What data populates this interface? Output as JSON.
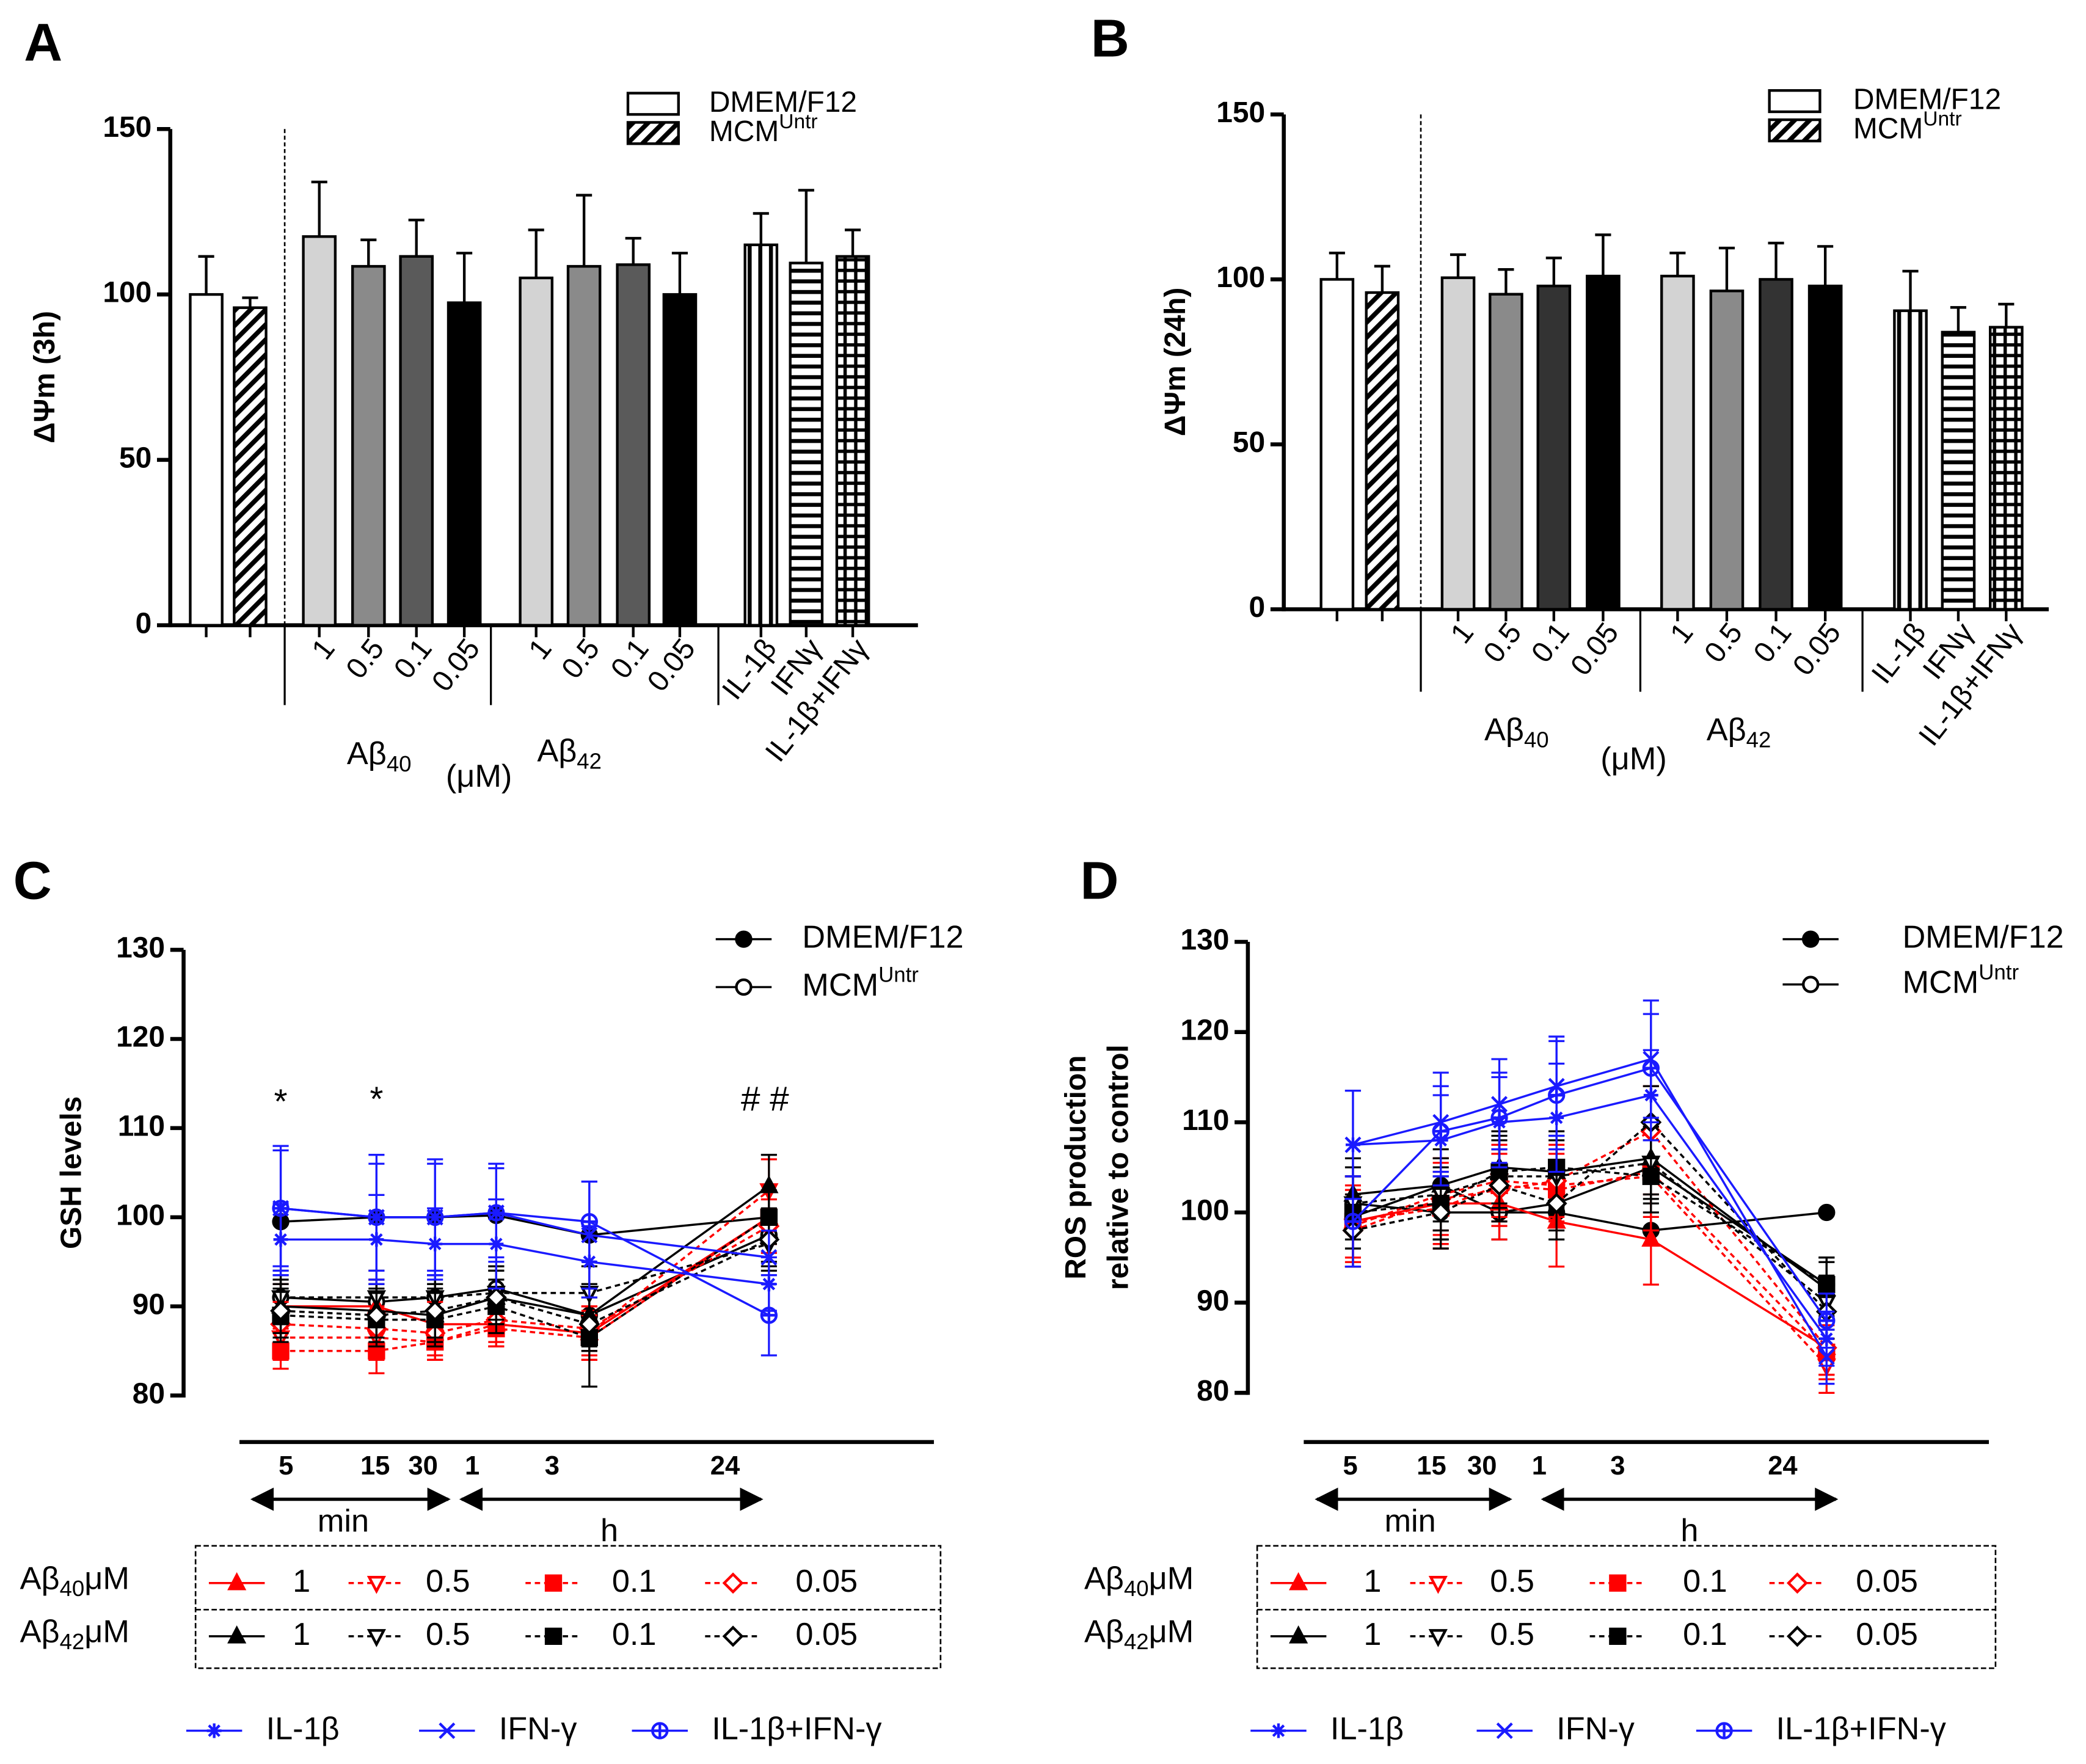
{
  "chart_data": [
    {
      "type": "bar",
      "panel": "A",
      "ylabel": "ΔΨm (3h)",
      "ylim": [
        0,
        150
      ],
      "yticks": [
        0,
        50,
        100,
        150
      ],
      "categories": [
        null,
        null,
        "1",
        "0.5",
        "0.1",
        "0.05",
        "1",
        "0.5",
        "0.1",
        "0.05",
        "IL-1β",
        "IFNγ",
        "IL-1β+IFNγ"
      ],
      "values": [
        100,
        96,
        117.5,
        108.5,
        111.5,
        97.5,
        105,
        108.5,
        109,
        100,
        115,
        109.5,
        111.5
      ],
      "errors": [
        11.5,
        3,
        16.5,
        8,
        11,
        15,
        14.5,
        21.5,
        8,
        12.5,
        9.5,
        22,
        8
      ],
      "colors": [
        "#ffffff",
        "#ffffff",
        "#d3d3d3",
        "#8a8a8a",
        "#5a5a5a",
        "#000000",
        "#d3d3d3",
        "#8a8a8a",
        "#5a5a5a",
        "#000000",
        "#ffffff",
        "#ffffff",
        "#ffffff"
      ],
      "patterns": [
        "none",
        "diagonal",
        "none",
        "none",
        "none",
        "none",
        "none",
        "none",
        "none",
        "none",
        "vertical",
        "horizontal",
        "grid"
      ],
      "groups": [
        {
          "text": "Aβ",
          "sub": "40"
        },
        {
          "text": "Aβ",
          "sub": "42"
        }
      ],
      "unit": "(μM)",
      "legend": [
        {
          "text": "DMEM/F12"
        },
        {
          "text": "MCM",
          "sup": "Untr"
        }
      ]
    },
    {
      "type": "bar",
      "panel": "B",
      "ylabel": "ΔΨm (24h)",
      "ylim": [
        0,
        150
      ],
      "yticks": [
        0,
        50,
        100,
        150
      ],
      "categories": [
        null,
        null,
        "1",
        "0.5",
        "0.1",
        "0.05",
        "1",
        "0.5",
        "0.1",
        "0.05",
        "IL-1β",
        "IFNγ",
        "IL-1β+IFNγ"
      ],
      "values": [
        100,
        96,
        100.5,
        95.5,
        98,
        101,
        101,
        96.5,
        100,
        98,
        90.5,
        84,
        85.5
      ],
      "errors": [
        8,
        8,
        7,
        7.5,
        8.5,
        12.5,
        7,
        13,
        11,
        12,
        12,
        7.5,
        7
      ],
      "colors": [
        "#ffffff",
        "#ffffff",
        "#d3d3d3",
        "#8a8a8a",
        "#333333",
        "#000000",
        "#d3d3d3",
        "#8a8a8a",
        "#333333",
        "#000000",
        "#ffffff",
        "#ffffff",
        "#ffffff"
      ],
      "patterns": [
        "none",
        "diagonal",
        "none",
        "none",
        "none",
        "none",
        "none",
        "none",
        "none",
        "none",
        "vertical",
        "horizontal",
        "grid"
      ],
      "groups": [
        {
          "text": "Aβ",
          "sub": "40"
        },
        {
          "text": "Aβ",
          "sub": "42"
        }
      ],
      "unit": "(μM)",
      "legend": [
        {
          "text": "DMEM/F12"
        },
        {
          "text": "MCM",
          "sup": "Untr"
        }
      ]
    },
    {
      "type": "line",
      "panel": "C",
      "ylabel": [
        "GSH levels"
      ],
      "ylim": [
        80,
        130
      ],
      "yticks": [
        80,
        90,
        100,
        110,
        120,
        130
      ],
      "categories": [
        "5",
        "15",
        "30",
        "1",
        "3",
        "24"
      ],
      "units": [
        "min",
        "h"
      ],
      "annotations": [
        "*",
        "*",
        "# #"
      ],
      "row_labels": [
        {
          "text": "Aβ",
          "sub": "40",
          "tail": "μM"
        },
        {
          "text": "Aβ",
          "sub": "42",
          "tail": "μM"
        }
      ],
      "series": [
        {
          "name": "DMEM/F12",
          "color": "#000000",
          "marker": "dot",
          "dash": false,
          "values": [
            99.5,
            100,
            100,
            100.2,
            98,
            100
          ]
        },
        {
          "name": "MCM",
          "name_sup": "Untr",
          "color": "#000000",
          "marker": "circle",
          "dash": false,
          "values": [
            91,
            90.5,
            91,
            92,
            89,
            98
          ],
          "errors": [
            2.5,
            2.5,
            2.5,
            2.5,
            3,
            3
          ]
        },
        {
          "name": "1",
          "color": "#ff0000",
          "marker": "triangle",
          "dash": false,
          "values": [
            90,
            90,
            88,
            88,
            87,
            100
          ],
          "errors": [
            2.5,
            3,
            2.5,
            2.5,
            3,
            3
          ]
        },
        {
          "name": "0.5",
          "color": "#ff0000",
          "marker": "tridown",
          "dash": true,
          "values": [
            86.5,
            86.5,
            86,
            88,
            87,
            103
          ],
          "errors": [
            2.5,
            2.5,
            2,
            2.5,
            2.5,
            3.5
          ]
        },
        {
          "name": "0.1",
          "color": "#ff0000",
          "marker": "square",
          "dash": true,
          "values": [
            85,
            85,
            86,
            87.5,
            86.5,
            100
          ],
          "errors": [
            2,
            2.5,
            2,
            2,
            2.5,
            3
          ]
        },
        {
          "name": "0.05",
          "color": "#ff0000",
          "marker": "diamond",
          "dash": true,
          "values": [
            88,
            87.5,
            87,
            88.5,
            87.5,
            99
          ],
          "errors": [
            2.5,
            2.5,
            2.5,
            2.5,
            2.5,
            3
          ]
        },
        {
          "name": "1",
          "color": "#000000",
          "marker": "triangle",
          "dash": false,
          "values": [
            90,
            89.5,
            89,
            91,
            89,
            103.5
          ],
          "errors": [
            3,
            3,
            3,
            3,
            3.5,
            3.5
          ]
        },
        {
          "name": "0.5",
          "color": "#000000",
          "marker": "tridown",
          "dash": true,
          "values": [
            91,
            91,
            91,
            91.5,
            91.5,
            97
          ],
          "errors": [
            3,
            3,
            2.5,
            3,
            3,
            3
          ]
        },
        {
          "name": "0.1",
          "color": "#000000",
          "marker": "square",
          "dash": true,
          "values": [
            89,
            88.5,
            88.5,
            90,
            86.5,
            100
          ],
          "errors": [
            3,
            3,
            3,
            3,
            5.5,
            3
          ]
        },
        {
          "name": "0.05",
          "color": "#000000",
          "marker": "diamond",
          "dash": true,
          "values": [
            89.5,
            89,
            89.5,
            91,
            88,
            97.5
          ],
          "errors": [
            3,
            3,
            3,
            3,
            3,
            3
          ]
        },
        {
          "name": "IL-1β",
          "color": "#1a1aff",
          "marker": "asterisk",
          "dash": false,
          "values": [
            97.5,
            97.5,
            97,
            97,
            95,
            92.5
          ],
          "errors": [
            4,
            5,
            4,
            5,
            4,
            3
          ]
        },
        {
          "name": "IFN-γ",
          "color": "#1a1aff",
          "marker": "cross",
          "dash": false,
          "values": [
            101,
            100,
            100,
            100.5,
            98,
            95.5
          ],
          "errors": [
            7,
            7,
            6.5,
            5.5,
            6,
            3
          ]
        },
        {
          "name": "IL-1β+IFN-γ",
          "color": "#1a1aff",
          "marker": "circleplus",
          "dash": false,
          "values": [
            101,
            100,
            100,
            100.5,
            99.5,
            89
          ],
          "errors": [
            6.5,
            6,
            6,
            5,
            4.5,
            4.5
          ]
        }
      ]
    },
    {
      "type": "line",
      "panel": "D",
      "ylabel": [
        "ROS production",
        "relative to control"
      ],
      "ylim": [
        80,
        130
      ],
      "yticks": [
        80,
        90,
        100,
        110,
        120,
        130
      ],
      "categories": [
        "5",
        "15",
        "30",
        "1",
        "3",
        "24"
      ],
      "units": [
        "min",
        "h"
      ],
      "row_labels": [
        {
          "text": "Aβ",
          "sub": "40",
          "tail": "μM"
        },
        {
          "text": "Aβ",
          "sub": "42",
          "tail": "μM"
        }
      ],
      "series": [
        {
          "name": "DMEM/F12",
          "color": "#000000",
          "marker": "dot",
          "dash": false,
          "values": [
            99.5,
            103,
            100,
            100,
            98,
            100
          ]
        },
        {
          "name": "MCM",
          "name_sup": "Untr",
          "color": "#000000",
          "marker": "circle",
          "dash": false,
          "values": [
            101,
            100,
            100,
            101,
            105,
            92
          ],
          "errors": [
            3,
            3,
            3,
            3,
            4,
            3
          ]
        },
        {
          "name": "1",
          "color": "#ff0000",
          "marker": "triangle",
          "dash": false,
          "values": [
            99,
            101,
            101,
            99,
            97,
            85
          ],
          "errors": [
            5,
            5,
            4,
            5,
            5,
            3
          ]
        },
        {
          "name": "0.5",
          "color": "#ff0000",
          "marker": "tridown",
          "dash": true,
          "values": [
            98.5,
            102,
            103.5,
            103,
            104,
            83
          ],
          "errors": [
            4,
            4,
            4,
            4,
            6,
            3
          ]
        },
        {
          "name": "0.1",
          "color": "#ff0000",
          "marker": "square",
          "dash": true,
          "values": [
            99,
            100.5,
            103,
            102.5,
            104.5,
            84.5
          ],
          "errors": [
            4,
            4,
            4,
            4,
            5,
            3
          ]
        },
        {
          "name": "0.05",
          "color": "#ff0000",
          "marker": "diamond",
          "dash": true,
          "values": [
            98,
            101.5,
            102.5,
            103.5,
            109,
            85
          ],
          "errors": [
            4,
            4,
            4,
            4,
            5,
            3
          ]
        },
        {
          "name": "1",
          "color": "#000000",
          "marker": "triangle",
          "dash": false,
          "values": [
            102,
            103,
            105,
            104.5,
            106,
            91.5
          ],
          "errors": [
            4,
            4,
            4,
            4,
            4,
            3
          ]
        },
        {
          "name": "0.5",
          "color": "#000000",
          "marker": "tridown",
          "dash": true,
          "values": [
            101,
            102,
            104,
            104,
            105.5,
            90
          ],
          "errors": [
            4,
            4,
            4,
            4,
            4,
            3
          ]
        },
        {
          "name": "0.1",
          "color": "#000000",
          "marker": "square",
          "dash": true,
          "values": [
            100,
            101,
            104.5,
            105,
            104,
            92
          ],
          "errors": [
            4,
            4,
            4,
            4,
            4,
            3
          ]
        },
        {
          "name": "0.05",
          "color": "#000000",
          "marker": "diamond",
          "dash": true,
          "values": [
            98,
            100,
            103,
            101,
            110,
            89
          ],
          "errors": [
            4,
            4,
            4,
            4,
            4,
            3
          ]
        },
        {
          "name": "IL-1β",
          "color": "#1a1aff",
          "marker": "asterisk",
          "dash": false,
          "values": [
            107.5,
            108,
            110,
            110.5,
            113,
            86
          ],
          "errors": [
            6,
            5,
            5,
            6,
            5,
            3
          ]
        },
        {
          "name": "IFN-γ",
          "color": "#1a1aff",
          "marker": "cross",
          "dash": false,
          "values": [
            107.5,
            110,
            112,
            114,
            117,
            84
          ],
          "errors": [
            6,
            5.5,
            5,
            5.5,
            6.5,
            3
          ]
        },
        {
          "name": "IL-1β+IFN-γ",
          "color": "#1a1aff",
          "marker": "circleplus",
          "dash": false,
          "values": [
            99,
            109,
            110.5,
            113,
            116,
            88
          ],
          "errors": [
            5,
            5,
            5,
            6,
            6,
            3
          ]
        }
      ]
    }
  ]
}
